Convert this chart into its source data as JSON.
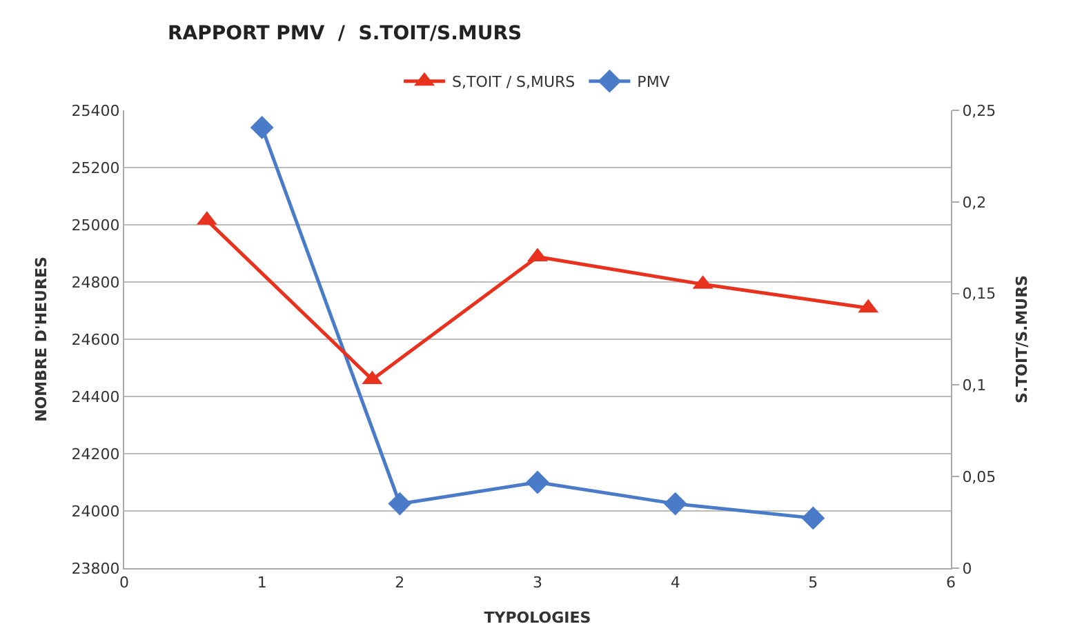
{
  "chart_data": {
    "type": "line",
    "title": "RAPPORT PMV  /  S.TOIT/S.MURS",
    "xlabel": "TYPOLOGIES",
    "ylabel": "NOMBRE D'HEURES",
    "y2label": "S.TOIT/S.MURS",
    "series": [
      {
        "name": "S,TOIT / S,MURS",
        "color": "#e8321e",
        "marker": "triangle",
        "axis": "y2",
        "x": [
          0.6,
          1.8,
          3,
          4.2,
          5.4
        ],
        "values": [
          0.19,
          0.103,
          0.17,
          0.155,
          0.142
        ]
      },
      {
        "name": "PMV",
        "color": "#4a7bc8",
        "marker": "diamond",
        "x": [
          1,
          2,
          3,
          4,
          5
        ],
        "values": [
          25340,
          24025,
          24100,
          24025,
          23975
        ]
      }
    ],
    "xlim": [
      0,
      6
    ],
    "xticks": [
      0,
      1,
      2,
      3,
      4,
      5,
      6
    ],
    "ylim": [
      23800,
      25400
    ],
    "yticks": [
      23800,
      24000,
      24200,
      24400,
      24600,
      24800,
      25000,
      25200,
      25400
    ],
    "y2lim": [
      0,
      0.25
    ],
    "y2ticks": [
      0,
      {
        "value": 0.05,
        "label": "0,05"
      },
      {
        "value": 0.1,
        "label": "0,1"
      },
      {
        "value": 0.15,
        "label": "0,15"
      },
      {
        "value": 0.2,
        "label": "0,2"
      },
      {
        "value": 0.25,
        "label": "0,25"
      }
    ],
    "grid": "y",
    "legend": "top"
  }
}
